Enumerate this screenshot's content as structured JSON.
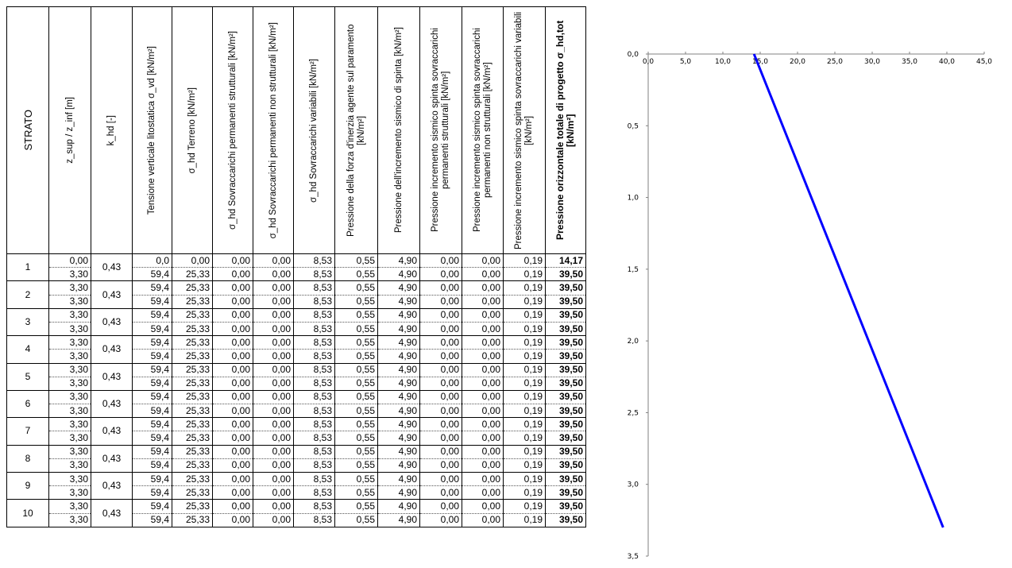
{
  "table": {
    "headers": [
      {
        "id": "strato",
        "text": "STRATO"
      },
      {
        "id": "z",
        "text": "z_sup / z_inf [m]"
      },
      {
        "id": "khd",
        "text": "k_hd [-]"
      },
      {
        "id": "sigma_vd",
        "text": "Tensione verticale litostatica σ_vd [kN/m²]"
      },
      {
        "id": "terreno",
        "text": "σ_hd Terreno [kN/m²]"
      },
      {
        "id": "perm_strut",
        "text": "σ_hd Sovraccarichi permanenti strutturali [kN/m²]"
      },
      {
        "id": "perm_nonstrut",
        "text": "σ_hd Sovraccarichi permanenti non strutturali [kN/m²]"
      },
      {
        "id": "variabili",
        "text": "σ_hd Sovraccarichi variabili [kN/m²]"
      },
      {
        "id": "inerzia",
        "text": "Pressione della forza d'inerzia agente sul paramento [kN/m²]"
      },
      {
        "id": "sismico_spinta",
        "text": "Pressione dell'incremento sismico di spinta [kN/m²]"
      },
      {
        "id": "sismico_perm_strut",
        "text": "Pressione incremento sismico spinta sovraccarichi permanenti strutturali [kN/m²]"
      },
      {
        "id": "sismico_perm_nonstrut",
        "text": "Pressione incremento sismico spinta sovraccarichi permanenti non strutturali [kN/m²]"
      },
      {
        "id": "sismico_var",
        "text": "Pressione incremento sismico spinta sovraccarichi variabili [kN/m²]"
      },
      {
        "id": "totale",
        "text": "Pressione orizzontale totale di progetto σ_hd,tot [kN/m²]"
      }
    ],
    "strata": [
      {
        "label": "1",
        "k": "0,43",
        "top": [
          "0,00",
          "0,0",
          "0,00",
          "0,00",
          "0,00",
          "8,53",
          "0,55",
          "4,90",
          "0,00",
          "0,00",
          "0,19",
          "14,17"
        ],
        "bottom": [
          "3,30",
          "59,4",
          "25,33",
          "0,00",
          "0,00",
          "8,53",
          "0,55",
          "4,90",
          "0,00",
          "0,00",
          "0,19",
          "39,50"
        ]
      },
      {
        "label": "2",
        "k": "0,43",
        "top": [
          "3,30",
          "59,4",
          "25,33",
          "0,00",
          "0,00",
          "8,53",
          "0,55",
          "4,90",
          "0,00",
          "0,00",
          "0,19",
          "39,50"
        ],
        "bottom": [
          "3,30",
          "59,4",
          "25,33",
          "0,00",
          "0,00",
          "8,53",
          "0,55",
          "4,90",
          "0,00",
          "0,00",
          "0,19",
          "39,50"
        ]
      },
      {
        "label": "3",
        "k": "0,43",
        "top": [
          "3,30",
          "59,4",
          "25,33",
          "0,00",
          "0,00",
          "8,53",
          "0,55",
          "4,90",
          "0,00",
          "0,00",
          "0,19",
          "39,50"
        ],
        "bottom": [
          "3,30",
          "59,4",
          "25,33",
          "0,00",
          "0,00",
          "8,53",
          "0,55",
          "4,90",
          "0,00",
          "0,00",
          "0,19",
          "39,50"
        ]
      },
      {
        "label": "4",
        "k": "0,43",
        "top": [
          "3,30",
          "59,4",
          "25,33",
          "0,00",
          "0,00",
          "8,53",
          "0,55",
          "4,90",
          "0,00",
          "0,00",
          "0,19",
          "39,50"
        ],
        "bottom": [
          "3,30",
          "59,4",
          "25,33",
          "0,00",
          "0,00",
          "8,53",
          "0,55",
          "4,90",
          "0,00",
          "0,00",
          "0,19",
          "39,50"
        ]
      },
      {
        "label": "5",
        "k": "0,43",
        "top": [
          "3,30",
          "59,4",
          "25,33",
          "0,00",
          "0,00",
          "8,53",
          "0,55",
          "4,90",
          "0,00",
          "0,00",
          "0,19",
          "39,50"
        ],
        "bottom": [
          "3,30",
          "59,4",
          "25,33",
          "0,00",
          "0,00",
          "8,53",
          "0,55",
          "4,90",
          "0,00",
          "0,00",
          "0,19",
          "39,50"
        ]
      },
      {
        "label": "6",
        "k": "0,43",
        "top": [
          "3,30",
          "59,4",
          "25,33",
          "0,00",
          "0,00",
          "8,53",
          "0,55",
          "4,90",
          "0,00",
          "0,00",
          "0,19",
          "39,50"
        ],
        "bottom": [
          "3,30",
          "59,4",
          "25,33",
          "0,00",
          "0,00",
          "8,53",
          "0,55",
          "4,90",
          "0,00",
          "0,00",
          "0,19",
          "39,50"
        ]
      },
      {
        "label": "7",
        "k": "0,43",
        "top": [
          "3,30",
          "59,4",
          "25,33",
          "0,00",
          "0,00",
          "8,53",
          "0,55",
          "4,90",
          "0,00",
          "0,00",
          "0,19",
          "39,50"
        ],
        "bottom": [
          "3,30",
          "59,4",
          "25,33",
          "0,00",
          "0,00",
          "8,53",
          "0,55",
          "4,90",
          "0,00",
          "0,00",
          "0,19",
          "39,50"
        ]
      },
      {
        "label": "8",
        "k": "0,43",
        "top": [
          "3,30",
          "59,4",
          "25,33",
          "0,00",
          "0,00",
          "8,53",
          "0,55",
          "4,90",
          "0,00",
          "0,00",
          "0,19",
          "39,50"
        ],
        "bottom": [
          "3,30",
          "59,4",
          "25,33",
          "0,00",
          "0,00",
          "8,53",
          "0,55",
          "4,90",
          "0,00",
          "0,00",
          "0,19",
          "39,50"
        ]
      },
      {
        "label": "9",
        "k": "0,43",
        "top": [
          "3,30",
          "59,4",
          "25,33",
          "0,00",
          "0,00",
          "8,53",
          "0,55",
          "4,90",
          "0,00",
          "0,00",
          "0,19",
          "39,50"
        ],
        "bottom": [
          "3,30",
          "59,4",
          "25,33",
          "0,00",
          "0,00",
          "8,53",
          "0,55",
          "4,90",
          "0,00",
          "0,00",
          "0,19",
          "39,50"
        ]
      },
      {
        "label": "10",
        "k": "0,43",
        "top": [
          "3,30",
          "59,4",
          "25,33",
          "0,00",
          "0,00",
          "8,53",
          "0,55",
          "4,90",
          "0,00",
          "0,00",
          "0,19",
          "39,50"
        ],
        "bottom": [
          "3,30",
          "59,4",
          "25,33",
          "0,00",
          "0,00",
          "8,53",
          "0,55",
          "4,90",
          "0,00",
          "0,00",
          "0,19",
          "39,50"
        ]
      }
    ]
  },
  "chart_data": {
    "type": "line",
    "title": "",
    "xlabel": "",
    "ylabel": "",
    "x_axis_position": "top",
    "y_axis_inverted": true,
    "xlim": [
      0,
      45
    ],
    "ylim": [
      0,
      3.5
    ],
    "x_ticks": [
      "0,0",
      "5,0",
      "10,0",
      "15,0",
      "20,0",
      "25,0",
      "30,0",
      "35,0",
      "40,0",
      "45,0"
    ],
    "y_ticks": [
      "0,0",
      "0,5",
      "1,0",
      "1,5",
      "2,0",
      "2,5",
      "3,0",
      "3,5"
    ],
    "grid": false,
    "legend": "none",
    "series": [
      {
        "color": "#0000ff",
        "points": [
          {
            "x": 14.17,
            "y": 0.0
          },
          {
            "x": 39.5,
            "y": 3.3
          }
        ]
      }
    ]
  }
}
